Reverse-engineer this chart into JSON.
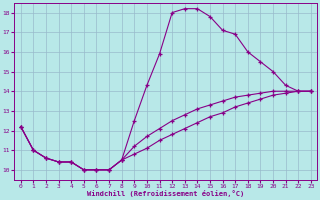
{
  "xlabel": "Windchill (Refroidissement éolien,°C)",
  "bg_color": "#b8e8e8",
  "line_color": "#880088",
  "grid_color": "#99bbcc",
  "xlim": [
    -0.5,
    23.5
  ],
  "ylim": [
    9.5,
    18.5
  ],
  "x_ticks": [
    0,
    1,
    2,
    3,
    4,
    5,
    6,
    7,
    8,
    9,
    10,
    11,
    12,
    13,
    14,
    15,
    16,
    17,
    18,
    19,
    20,
    21,
    22,
    23
  ],
  "y_ticks": [
    10,
    11,
    12,
    13,
    14,
    15,
    16,
    17,
    18
  ],
  "line1_x": [
    0,
    1,
    2,
    3,
    4,
    5,
    6,
    7,
    8,
    9,
    10,
    11,
    12,
    13,
    14,
    15,
    16,
    17,
    18,
    19,
    20,
    21,
    22,
    23
  ],
  "line1_y": [
    12.2,
    11.0,
    10.6,
    10.4,
    10.4,
    10.0,
    10.0,
    10.0,
    10.5,
    12.5,
    14.3,
    15.9,
    18.0,
    18.2,
    18.2,
    17.8,
    17.1,
    16.9,
    16.0,
    15.5,
    15.0,
    14.3,
    14.0,
    14.0
  ],
  "line2_x": [
    0,
    1,
    2,
    3,
    4,
    5,
    6,
    7,
    8,
    9,
    10,
    11,
    12,
    13,
    14,
    15,
    16,
    17,
    18,
    19,
    20,
    21,
    22,
    23
  ],
  "line2_y": [
    12.2,
    11.0,
    10.6,
    10.4,
    10.4,
    10.0,
    10.0,
    10.0,
    10.5,
    11.2,
    11.7,
    12.1,
    12.5,
    12.8,
    13.1,
    13.3,
    13.5,
    13.7,
    13.8,
    13.9,
    14.0,
    14.0,
    14.0,
    14.0
  ],
  "line3_x": [
    0,
    1,
    2,
    3,
    4,
    5,
    6,
    7,
    8,
    9,
    10,
    11,
    12,
    13,
    14,
    15,
    16,
    17,
    18,
    19,
    20,
    21,
    22,
    23
  ],
  "line3_y": [
    12.2,
    11.0,
    10.6,
    10.4,
    10.4,
    10.0,
    10.0,
    10.0,
    10.5,
    10.8,
    11.1,
    11.5,
    11.8,
    12.1,
    12.4,
    12.7,
    12.9,
    13.2,
    13.4,
    13.6,
    13.8,
    13.9,
    14.0,
    14.0
  ]
}
